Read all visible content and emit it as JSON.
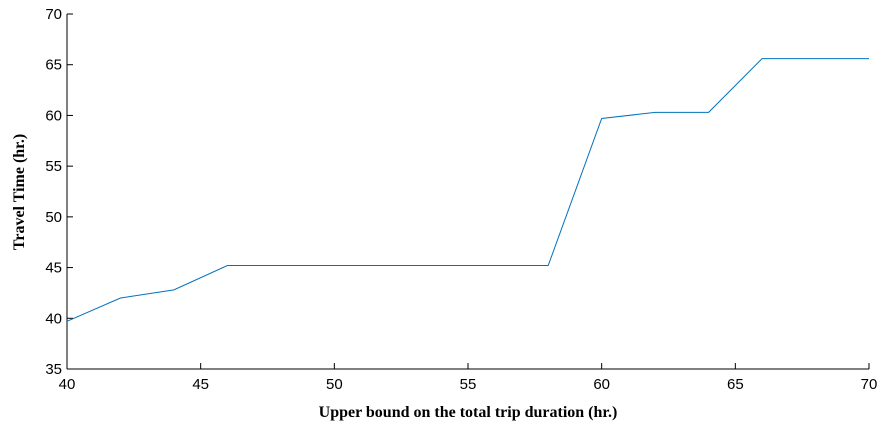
{
  "chart_data": {
    "type": "line",
    "title": "",
    "xlabel": "Upper bound on the total trip duration (hr.)",
    "ylabel": "Travel Time (hr.)",
    "xlim": [
      40,
      70
    ],
    "ylim": [
      35,
      70
    ],
    "xticks": [
      40,
      45,
      50,
      55,
      60,
      65,
      70
    ],
    "yticks": [
      35,
      40,
      45,
      50,
      55,
      60,
      65,
      70
    ],
    "grid": false,
    "series": [
      {
        "color": "#0072bd",
        "x": [
          40,
          42,
          44,
          46,
          48,
          50,
          52,
          54,
          56,
          58,
          60,
          62,
          64,
          66,
          68,
          70
        ],
        "y": [
          39.7,
          42.0,
          42.8,
          45.2,
          45.2,
          45.2,
          45.2,
          45.2,
          45.2,
          45.2,
          59.7,
          60.3,
          60.3,
          65.6,
          65.6,
          65.6
        ]
      }
    ]
  }
}
